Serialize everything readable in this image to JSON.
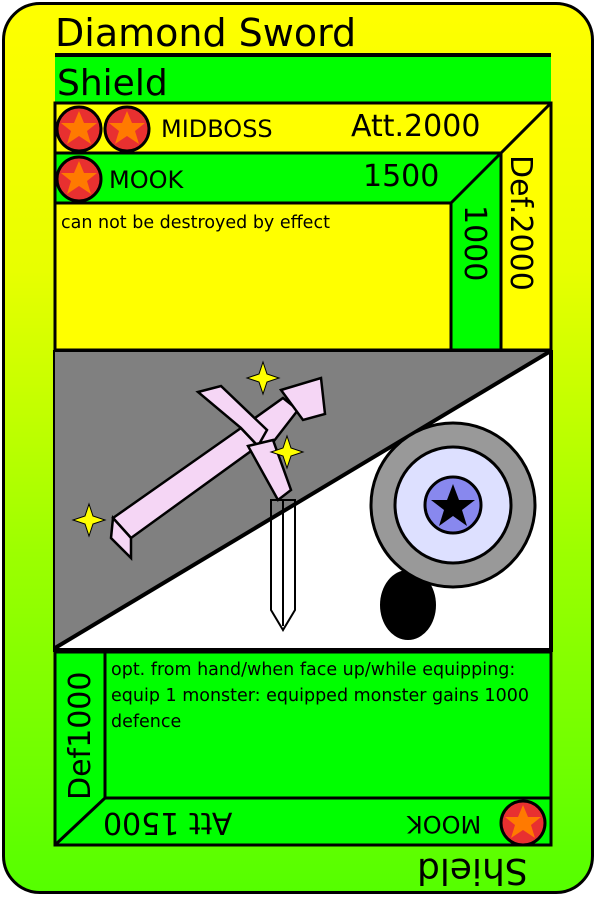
{
  "card": {
    "name": "Diamond Sword",
    "top_type": "Shield",
    "bottom_type": "Shield",
    "colors": {
      "yellow": "#ffff00",
      "green": "#00ff00",
      "star_fill": "#ff6600",
      "star_circle": "#dd2222"
    }
  },
  "upper_block": {
    "rank1": {
      "label": "MIDBOSS",
      "stars": 2,
      "attack": "Att.2000",
      "defense": "Def.2000"
    },
    "rank2": {
      "label": "MOOK",
      "stars": 1,
      "attack": "1500",
      "defense": "1000"
    },
    "effect": "can not be destroyed by effect"
  },
  "lower_block": {
    "defense": "Def1000",
    "effect": "opt. from hand/when face up/while equipping: equip 1 monster: equipped monster gains 1000 defence",
    "rank_label": "MOOK",
    "attack": "Att 1500",
    "stars": 1
  },
  "art": {
    "left_icon": "diamond-sword-icon",
    "right_icon": "round-shield-icon",
    "sparkles": 3
  }
}
